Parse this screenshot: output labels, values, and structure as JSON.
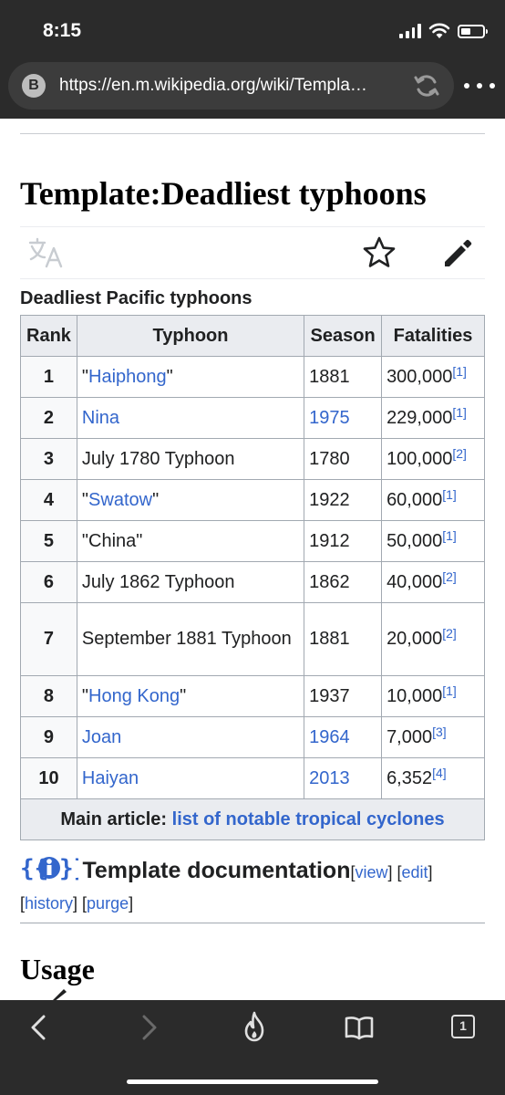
{
  "status_bar": {
    "time": "8:15",
    "battery_level": 0.45
  },
  "browser": {
    "site_badge": "B",
    "url": "https://en.m.wikipedia.org/wiki/Templa…",
    "icons": [
      "reload-icon",
      "more-dots-icon",
      "back-icon",
      "forward-icon",
      "flame-icon",
      "bookmarks-icon",
      "tabs-icon"
    ],
    "tab_count": "1"
  },
  "page": {
    "title": "Template:Deadliest typhoons",
    "toolbar_icons": [
      "translate-icon",
      "star-icon",
      "edit-icon"
    ]
  },
  "table": {
    "caption": "Deadliest Pacific typhoons",
    "headers": {
      "rank": "Rank",
      "typhoon": "Typhoon",
      "season": "Season",
      "fatalities": "Fatalities"
    },
    "rows": [
      {
        "rank": "1",
        "pre": "\"",
        "name": "Haiphong",
        "post": "\"",
        "season": "1881",
        "fatalities": "300,000",
        "ref": "[1]"
      },
      {
        "rank": "2",
        "pre": "",
        "name": "Nina",
        "post": "",
        "season": "1975",
        "fatalities": "229,000",
        "ref": "[1]"
      },
      {
        "rank": "3",
        "pre": "",
        "name": "July 1780 Typhoon",
        "post": "",
        "season": "1780",
        "fatalities": "100,000",
        "ref": "[2]"
      },
      {
        "rank": "4",
        "pre": "\"",
        "name": "Swatow",
        "post": "\"",
        "season": "1922",
        "fatalities": "60,000",
        "ref": "[1]"
      },
      {
        "rank": "5",
        "pre": "",
        "name": "\"China\"",
        "post": "",
        "season": "1912",
        "fatalities": "50,000",
        "ref": "[1]"
      },
      {
        "rank": "6",
        "pre": "",
        "name": "July 1862 Typhoon",
        "post": "",
        "season": "1862",
        "fatalities": "40,000",
        "ref": "[2]"
      },
      {
        "rank": "7",
        "pre": "",
        "name": "September 1881 Typhoon",
        "post": "",
        "season": "1881",
        "fatalities": "20,000",
        "ref": "[2]"
      },
      {
        "rank": "8",
        "pre": "\"",
        "name": "Hong Kong",
        "post": "\"",
        "season": "1937",
        "fatalities": "10,000",
        "ref": "[1]"
      },
      {
        "rank": "9",
        "pre": "",
        "name": "Joan",
        "post": "",
        "season": "1964",
        "fatalities": "7,000",
        "ref": "[3]"
      },
      {
        "rank": "10",
        "pre": "",
        "name": "Haiyan",
        "post": "",
        "season": "2013",
        "fatalities": "6,352",
        "ref": "[4]"
      }
    ],
    "footer": {
      "label": "Main article:",
      "link": "list of notable tropical cyclones"
    }
  },
  "colors": {
    "link": "#3366cc",
    "header_bg": "#eaecf0",
    "chrome_bg": "#2b2b2b"
  },
  "documentation": {
    "title": "Template documentation",
    "links": {
      "view": "view",
      "edit": "edit",
      "history": "history",
      "purge": "purge"
    }
  },
  "usage": {
    "title": "Usage"
  }
}
